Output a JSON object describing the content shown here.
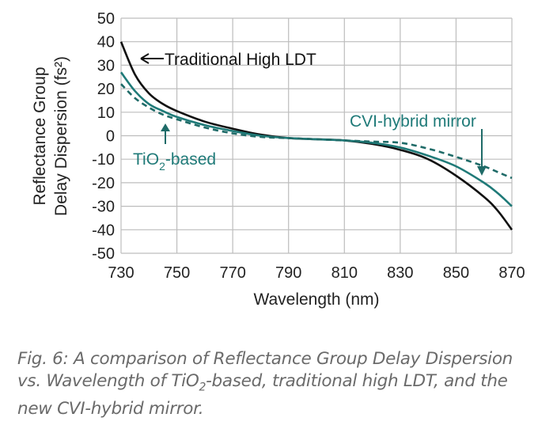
{
  "chart_data": {
    "type": "line",
    "xlabel": "Wavelength (nm)",
    "ylabel_lines": [
      "Reflectance Group",
      "Delay Dispersion (fs²)"
    ],
    "xlim": [
      730,
      870
    ],
    "ylim": [
      -50,
      50
    ],
    "xticks": [
      730,
      750,
      770,
      790,
      810,
      830,
      850,
      870
    ],
    "yticks": [
      50,
      40,
      30,
      20,
      10,
      0,
      -10,
      -20,
      -30,
      -40,
      -50
    ],
    "grid": true,
    "x": [
      730,
      735,
      740,
      745,
      750,
      760,
      770,
      780,
      790,
      800,
      810,
      820,
      830,
      840,
      850,
      860,
      865,
      870
    ],
    "series": [
      {
        "name": "Traditional High LDT",
        "color": "#111111",
        "style": "solid",
        "values": [
          40,
          26,
          18,
          13.5,
          10.5,
          6,
          3,
          0.5,
          -1,
          -1.5,
          -2,
          -3.5,
          -6,
          -10,
          -17,
          -26,
          -32,
          -40
        ]
      },
      {
        "name": "CVI-hybrid mirror",
        "color": "#1f7a78",
        "style": "solid",
        "values": [
          27,
          19,
          13.5,
          10.5,
          8,
          4.5,
          2,
          0,
          -1,
          -1.5,
          -2,
          -3,
          -5,
          -8.5,
          -13,
          -20,
          -24.5,
          -30
        ]
      },
      {
        "name": "TiO2-based",
        "color": "#1f6b68",
        "style": "dashed",
        "values": [
          22,
          16,
          12,
          9,
          7,
          3.5,
          1,
          -0.5,
          -1,
          -1.5,
          -2,
          -2.5,
          -3,
          -5.5,
          -9,
          -13,
          -15.5,
          -18
        ]
      }
    ],
    "annotations": {
      "traditional": "Traditional High LDT",
      "tio2_main": "TiO",
      "tio2_sub": "2",
      "tio2_rest": "-based",
      "cvi": "CVI-hybrid mirror"
    }
  },
  "caption": {
    "part1": "Fig. 6: A comparison of Reflectance Group Delay Dispersion vs. Wavelength of TiO",
    "sub": "2",
    "part2": "-based, traditional high LDT, and the new CVI-hybrid mirror."
  }
}
